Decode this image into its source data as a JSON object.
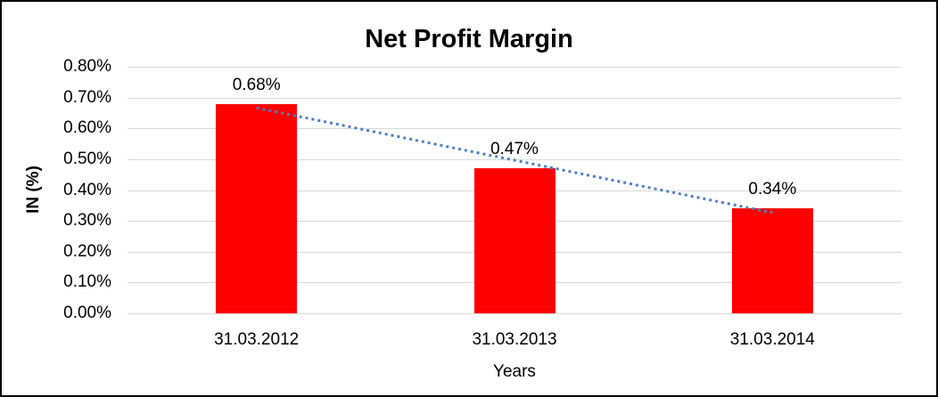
{
  "window": {
    "background": "#ffffff",
    "border_color": "#000000"
  },
  "chart_data": {
    "type": "bar",
    "title": "Net Profit Margin",
    "categories": [
      "31.03.2012",
      "31.03.2013",
      "31.03.2014"
    ],
    "values": [
      0.68,
      0.47,
      0.34
    ],
    "data_labels": [
      "0.68%",
      "0.47%",
      "0.34%"
    ],
    "xlabel": "Years",
    "ylabel": "IN (%)",
    "ylim": [
      0,
      0.8
    ],
    "y_ticks": [
      {
        "value": 0.0,
        "label": "0.00%"
      },
      {
        "value": 0.1,
        "label": "0.10%"
      },
      {
        "value": 0.2,
        "label": "0.20%"
      },
      {
        "value": 0.3,
        "label": "0.30%"
      },
      {
        "value": 0.4,
        "label": "0.40%"
      },
      {
        "value": 0.5,
        "label": "0.50%"
      },
      {
        "value": 0.6,
        "label": "0.60%"
      },
      {
        "value": 0.7,
        "label": "0.70%"
      },
      {
        "value": 0.8,
        "label": "0.80%"
      }
    ],
    "grid": true,
    "legend": "none",
    "bar_color": "#ff0000",
    "gridline_color": "#d9d9d9",
    "text_color": "#000000",
    "trendline": {
      "type": "linear",
      "style": "dotted",
      "color": "#4d81c2"
    }
  }
}
